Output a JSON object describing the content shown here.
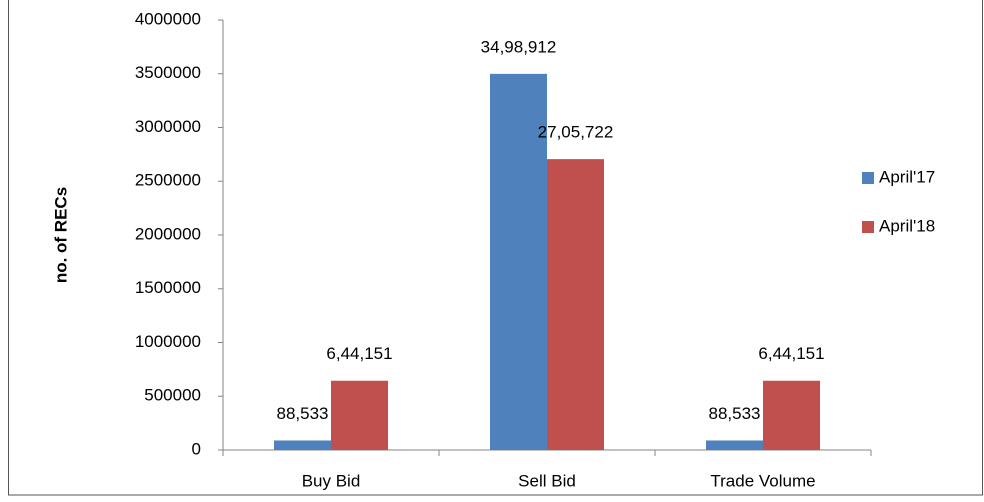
{
  "chart_data": {
    "type": "bar",
    "y_label": "no. of RECs",
    "categories": [
      "Buy Bid",
      "Sell Bid",
      "Trade Volume"
    ],
    "series": [
      {
        "name": "April'17",
        "color": "#4f81bd",
        "values": [
          88533,
          3498912,
          88533
        ],
        "value_labels": [
          "88,533",
          "34,98,912",
          "88,533"
        ]
      },
      {
        "name": "April'18",
        "color": "#c0504d",
        "values": [
          644151,
          2705722,
          644151
        ],
        "value_labels": [
          "6,44,151",
          "27,05,722",
          "6,44,151"
        ]
      }
    ],
    "ylim": [
      0,
      4000000
    ],
    "yticks": [
      0,
      500000,
      1000000,
      1500000,
      2000000,
      2500000,
      3000000,
      3500000,
      4000000
    ],
    "grid": false,
    "legend": "right"
  }
}
